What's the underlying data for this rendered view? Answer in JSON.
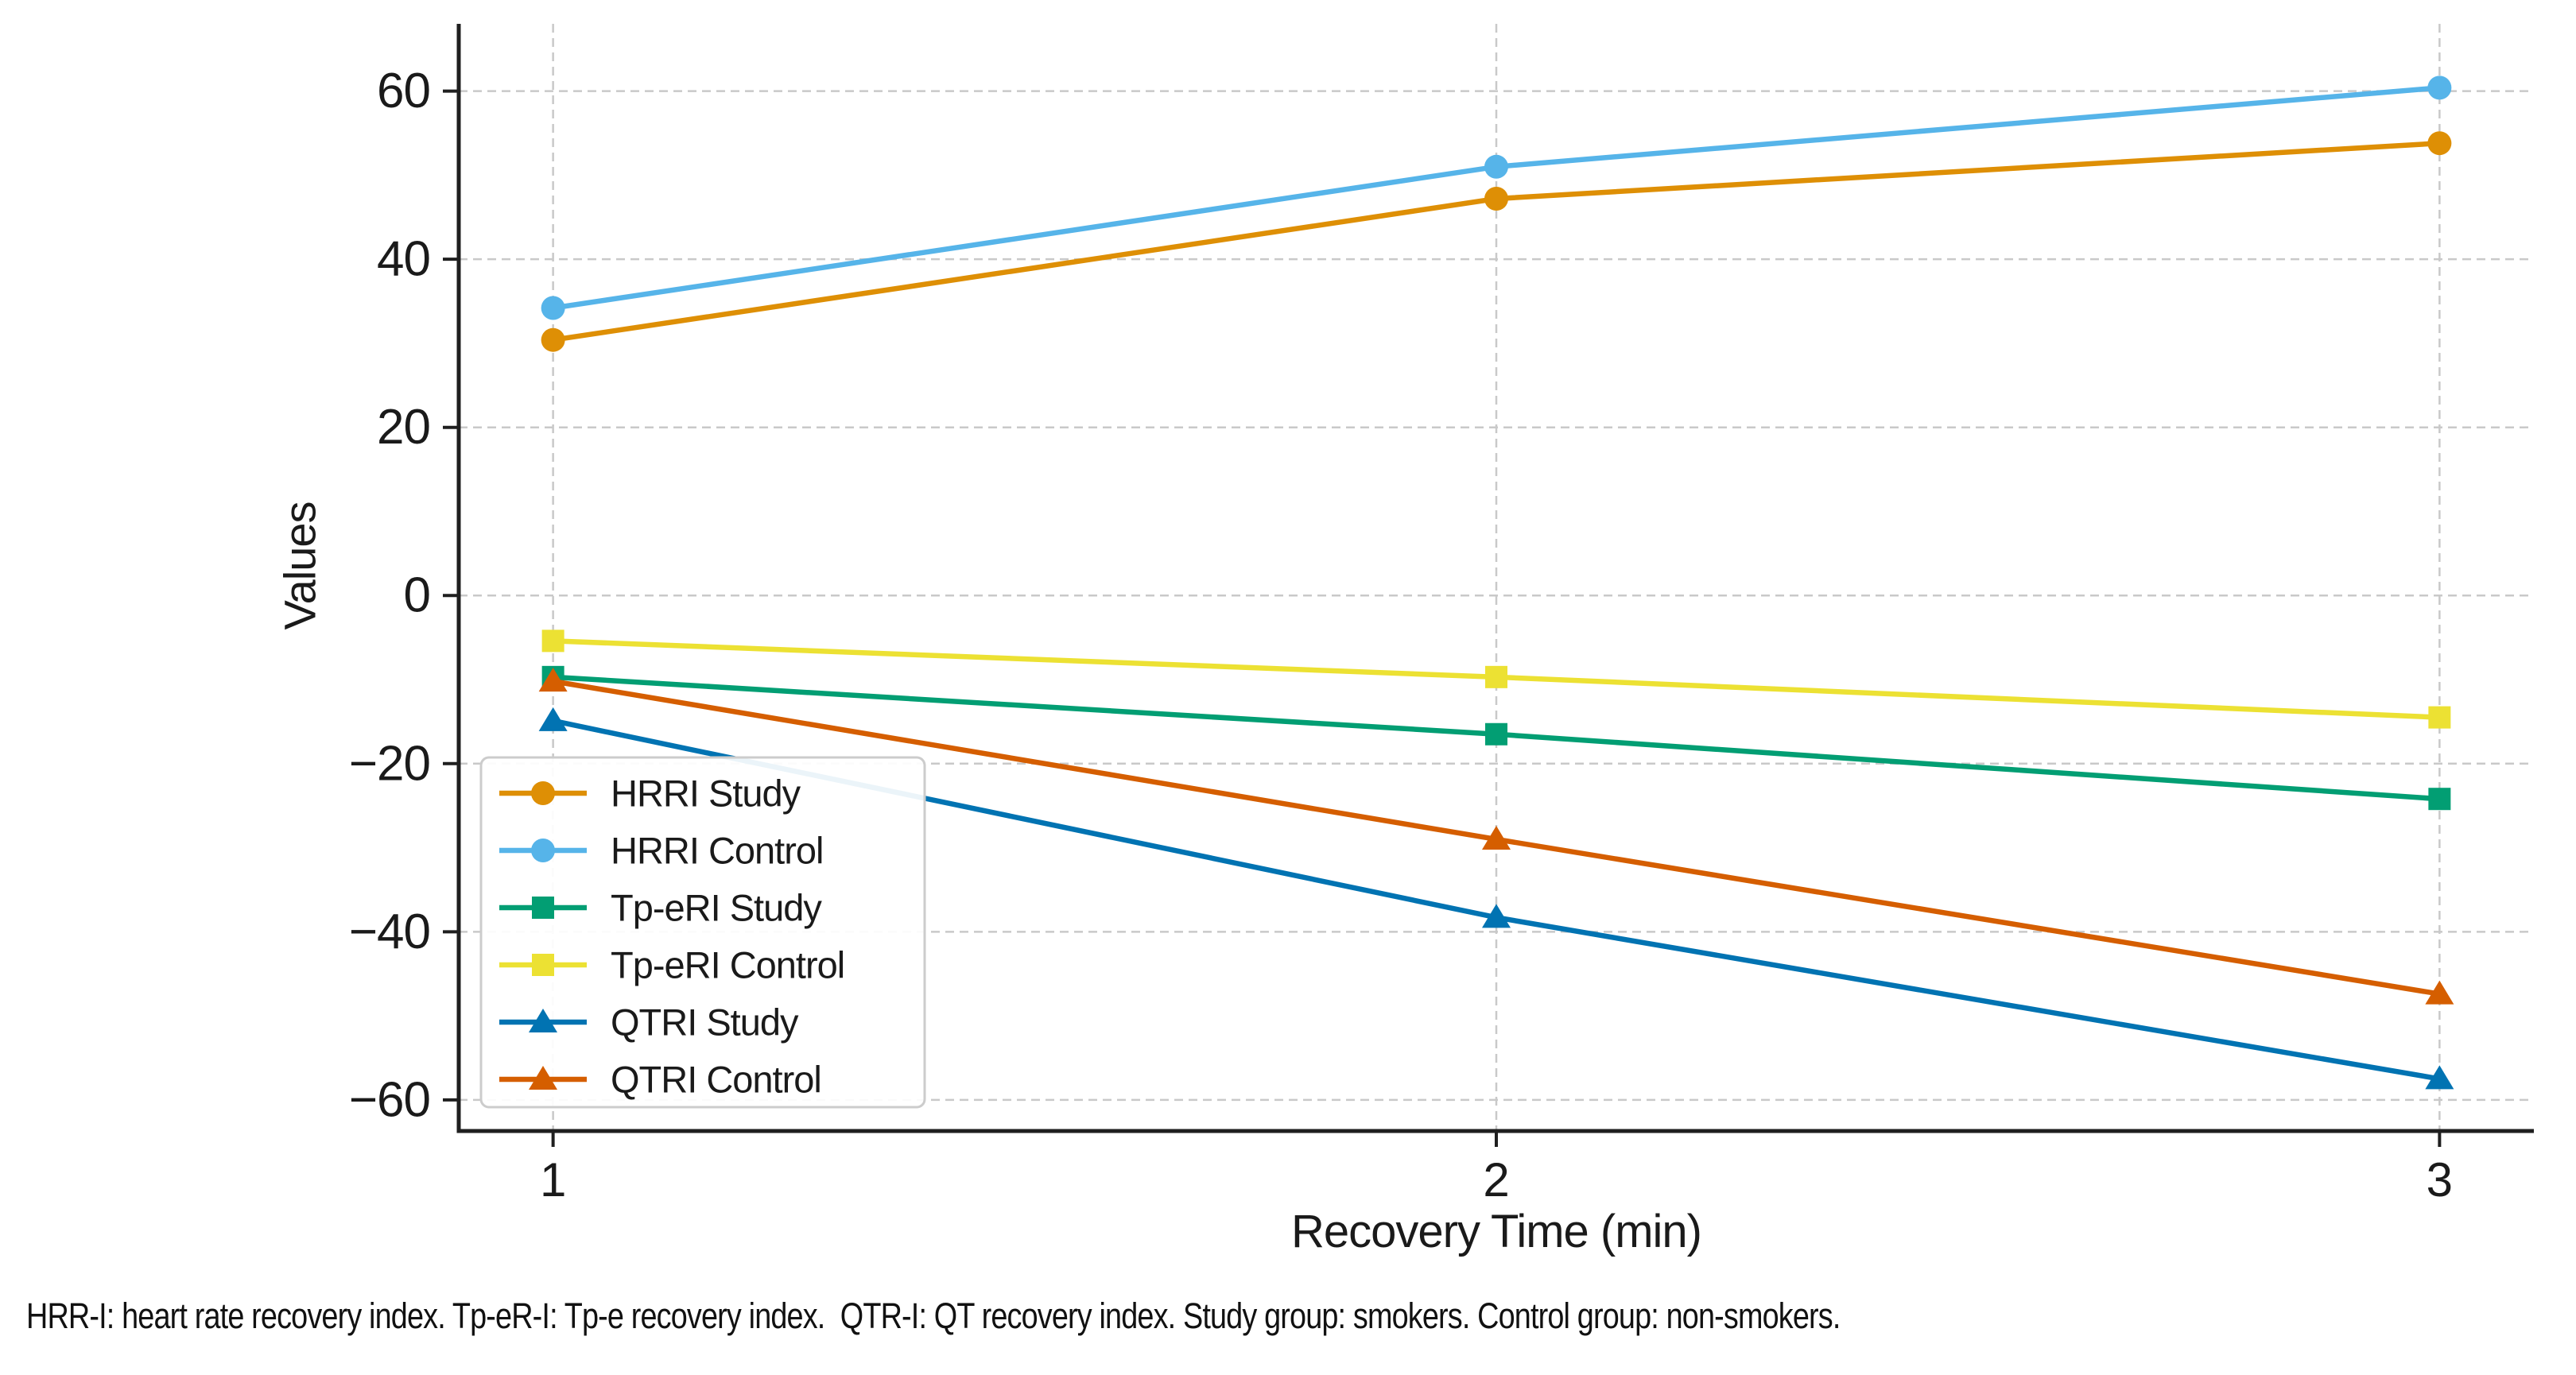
{
  "chart_data": {
    "type": "line",
    "title": "",
    "xlabel": "Recovery Time (min)",
    "ylabel": "Values",
    "x": [
      1,
      2,
      3
    ],
    "xtick_labels": [
      "1",
      "2",
      "3"
    ],
    "ytick_values": [
      60,
      40,
      20,
      0,
      -20,
      -40,
      -60
    ],
    "ytick_labels": [
      "60",
      "40",
      "20",
      "0",
      "−20",
      "−40",
      "−60"
    ],
    "xlim": [
      0.9,
      3.1
    ],
    "ylim": [
      -63.7,
      68
    ],
    "grid": true,
    "grid_style": "dashed",
    "legend_position": "lower left",
    "series": [
      {
        "name": "HRRI Study",
        "color": "#de8f05",
        "marker": "circle",
        "values": [
          30.4,
          47.2,
          53.8
        ]
      },
      {
        "name": "HRRI Control",
        "color": "#56b4e9",
        "marker": "circle",
        "values": [
          34.2,
          51.0,
          60.4
        ]
      },
      {
        "name": "Tp-eRI Study",
        "color": "#029e73",
        "marker": "square",
        "values": [
          -9.7,
          -16.5,
          -24.2
        ]
      },
      {
        "name": "Tp-eRI Control",
        "color": "#ece133",
        "marker": "square",
        "values": [
          -5.4,
          -9.7,
          -14.5
        ]
      },
      {
        "name": "QTRI Study",
        "color": "#0173b2",
        "marker": "triangle",
        "values": [
          -14.9,
          -38.3,
          -57.5
        ]
      },
      {
        "name": "QTRI Control",
        "color": "#d55e00",
        "marker": "triangle",
        "values": [
          -10.2,
          -29.0,
          -47.4
        ]
      }
    ],
    "footnote": "HRR-I: heart rate recovery index. Tp-eR-I: Tp-e recovery index.  QTR-I: QT recovery index. Study group: smokers. Control group: non-smokers."
  },
  "colors": {
    "background": "#ffffff",
    "grid": "#c9c9c9",
    "spine": "#1f1f1f",
    "text": "#1a1a1a",
    "legend_border": "#cccccc"
  }
}
